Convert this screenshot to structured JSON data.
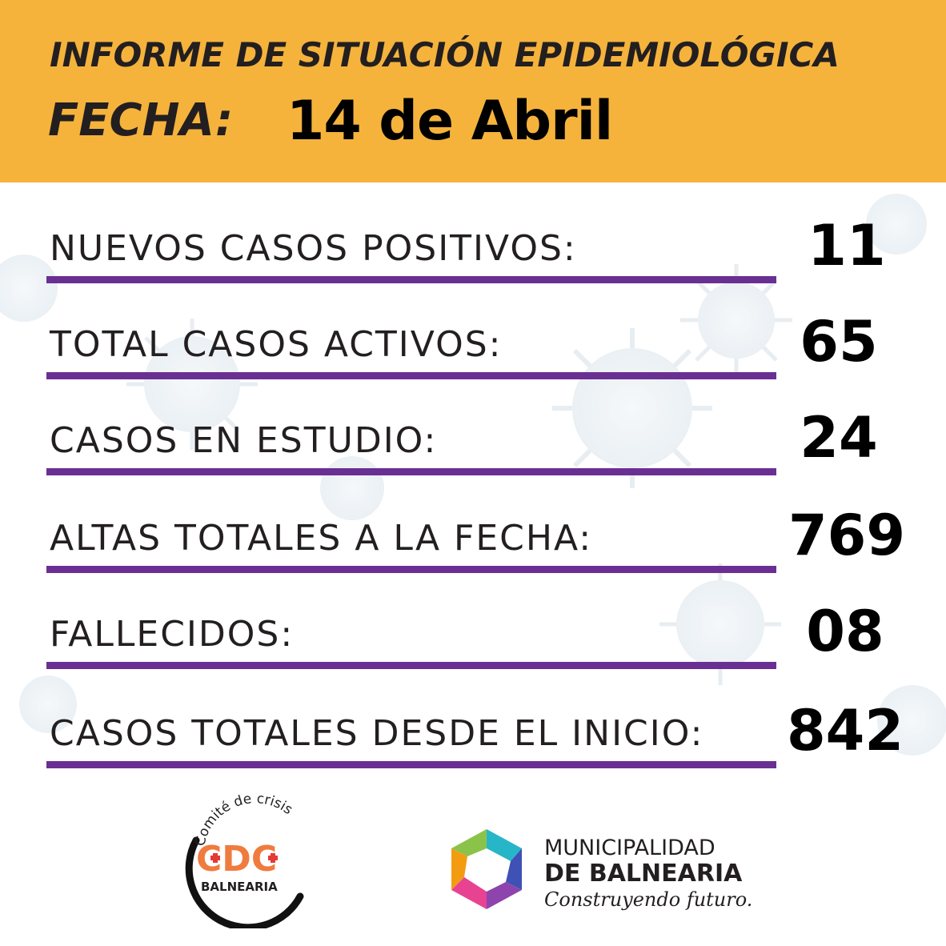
{
  "header": {
    "title": "INFORME DE SITUACIÓN EPIDEMIOLÓGICA",
    "date_label": "FECHA:",
    "date_value": "14 de Abril"
  },
  "stats": [
    {
      "label": "NUEVOS CASOS POSITIVOS:",
      "value": "11"
    },
    {
      "label": "TOTAL CASOS ACTIVOS:",
      "value": "65"
    },
    {
      "label": "CASOS EN ESTUDIO:",
      "value": "24"
    },
    {
      "label": "ALTAS TOTALES A LA FECHA:",
      "value": "769"
    },
    {
      "label": "FALLECIDOS:",
      "value": "08"
    },
    {
      "label": "CASOS TOTALES DESDE EL INICIO:",
      "value": "842"
    }
  ],
  "logos": {
    "cdc": {
      "arc_text": "Comité de crisis",
      "initials": "CDC",
      "name": "BALNEARIA"
    },
    "municipality": {
      "line1": "MUNICIPALIDAD",
      "line2": "DE BALNEARIA",
      "tagline": "Construyendo futuro."
    }
  },
  "colors": {
    "header_bg": "#f5b33c",
    "rule": "#6a2f93",
    "cdc_orange": "#f07b3f",
    "virus_tint": "#dfe8ee"
  }
}
